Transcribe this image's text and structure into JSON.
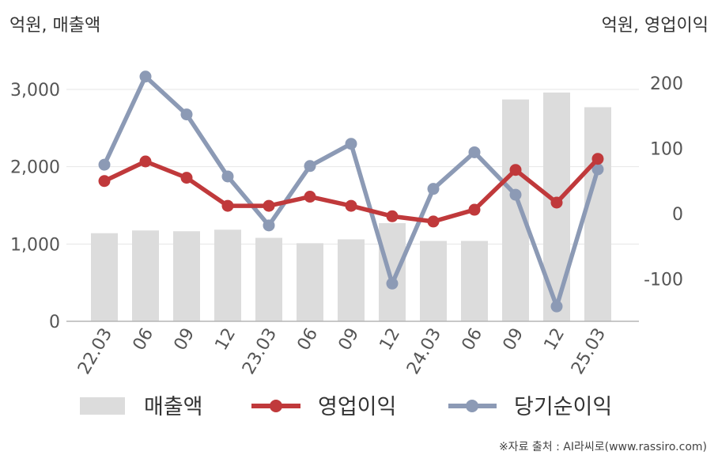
{
  "units": {
    "left": "억원, 매출액",
    "right": "억원, 영업이익"
  },
  "source": "※자료 출처 : AI라씨로(www.rassiro.com)",
  "chart_data": {
    "type": "bar+line",
    "categories": [
      "22.03",
      "06",
      "09",
      "12",
      "23.03",
      "06",
      "09",
      "12",
      "24.03",
      "06",
      "09",
      "12",
      "25.03"
    ],
    "left_axis": {
      "ticks": [
        0,
        1000,
        2000,
        3000
      ],
      "tick_labels": [
        "0",
        "1,000",
        "2,000",
        "3,000"
      ],
      "ylim": [
        0,
        3000
      ]
    },
    "right_axis": {
      "ticks": [
        -100,
        0,
        100,
        200
      ],
      "tick_labels": [
        "-100",
        "0",
        "100",
        "200"
      ],
      "ylim": [
        -165,
        200
      ]
    },
    "grid": true,
    "legend_position": "bottom",
    "series": [
      {
        "name": "매출액",
        "type": "bar",
        "axis": "left",
        "color": "#dcdcdc",
        "values": [
          1140,
          1175,
          1165,
          1185,
          1080,
          1010,
          1060,
          1270,
          1040,
          1040,
          2870,
          2960,
          2770
        ]
      },
      {
        "name": "영업이익",
        "type": "line",
        "axis": "right",
        "color": "#c0393b",
        "values": [
          50,
          80,
          55,
          12,
          12,
          26,
          12,
          -4,
          -12,
          6,
          67,
          17,
          84
        ]
      },
      {
        "name": "당기순이익",
        "type": "line",
        "axis": "right",
        "color": "#8c9ab5",
        "values": [
          75,
          210,
          152,
          57,
          -18,
          73,
          107,
          -107,
          38,
          94,
          29,
          -142,
          68
        ]
      }
    ]
  }
}
